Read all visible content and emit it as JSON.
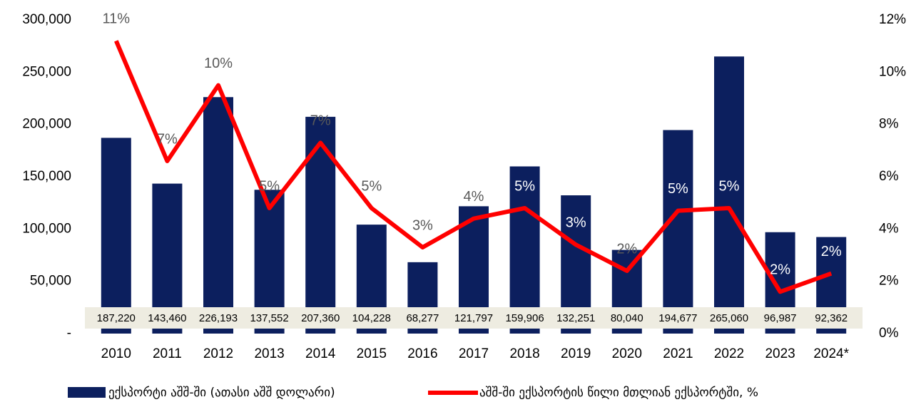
{
  "chart_data": {
    "type": "bar_line",
    "categories": [
      "2010",
      "2011",
      "2012",
      "2013",
      "2014",
      "2015",
      "2016",
      "2017",
      "2018",
      "2019",
      "2020",
      "2021",
      "2022",
      "2023",
      "2024*"
    ],
    "series": [
      {
        "name": "ექსპორტი აშშ-ში (ათასი აშშ დოლარი)",
        "type": "bar",
        "color": "#0c1f5e",
        "values": [
          187220,
          143460,
          226193,
          137552,
          207360,
          104228,
          68277,
          121797,
          159906,
          132251,
          80040,
          194677,
          265060,
          96987,
          92362
        ],
        "value_labels": [
          "187,220",
          "143,460",
          "226,193",
          "137,552",
          "207,360",
          "104,228",
          "68,277",
          "121,797",
          "159,906",
          "132,251",
          "80,040",
          "194,677",
          "265,060",
          "96,987",
          "92,362"
        ]
      },
      {
        "name": "აშშ-ში ექსპორტის წილი მთლიან ექსპორტში, %",
        "type": "line",
        "axis": "y2",
        "color": "#ff0000",
        "values": [
          11.2,
          6.6,
          9.5,
          4.8,
          7.3,
          4.8,
          3.3,
          4.4,
          4.8,
          3.4,
          2.4,
          4.7,
          4.8,
          1.6,
          2.3
        ],
        "value_labels": [
          "11%",
          "7%",
          "10%",
          "5%",
          "7%",
          "5%",
          "3%",
          "4%",
          "5%",
          "3%",
          "2%",
          "5%",
          "5%",
          "2%",
          "2%"
        ]
      }
    ],
    "ylim": [
      0,
      300000
    ],
    "yticks": [
      {
        "value": 0,
        "label": "-"
      },
      {
        "value": 50000,
        "label": "50,000"
      },
      {
        "value": 100000,
        "label": "100,000"
      },
      {
        "value": 150000,
        "label": "150,000"
      },
      {
        "value": 200000,
        "label": "200,000"
      },
      {
        "value": 250000,
        "label": "250,000"
      },
      {
        "value": 300000,
        "label": "300,000"
      }
    ],
    "y2lim": [
      0,
      12
    ],
    "y2ticks": [
      {
        "value": 0,
        "label": "0%"
      },
      {
        "value": 2,
        "label": "2%"
      },
      {
        "value": 4,
        "label": "4%"
      },
      {
        "value": 6,
        "label": "6%"
      },
      {
        "value": 8,
        "label": "8%"
      },
      {
        "value": 10,
        "label": "10%"
      },
      {
        "value": 12,
        "label": "12%"
      }
    ],
    "legend": "bottom"
  }
}
